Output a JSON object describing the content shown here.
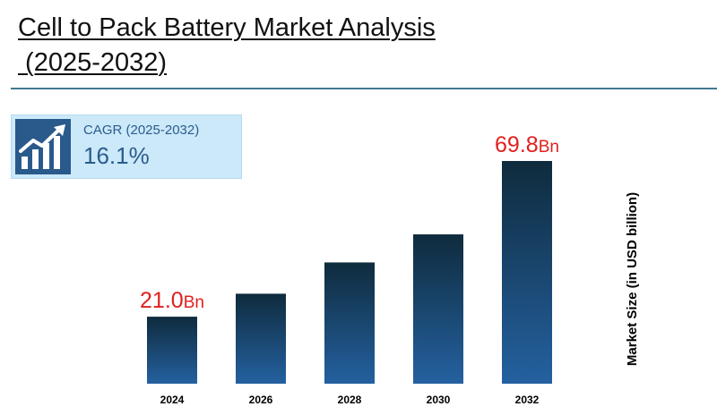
{
  "title_lines": [
    "Cell to Pack Battery Market Analysis",
    " (2025-2032)"
  ],
  "cagr": {
    "label": "CAGR (2025-2032)",
    "value": "16.1%",
    "icon": "growth-chart-icon"
  },
  "colors": {
    "bar_top": "#0f2b3d",
    "bar_bottom": "#2461a0",
    "accent_red": "#e0201f",
    "divider": "#3f7a8f"
  },
  "chart_data": {
    "type": "bar",
    "categories": [
      "2024",
      "2026",
      "2028",
      "2030",
      "2032"
    ],
    "values": [
      21.0,
      28.2,
      38.0,
      46.8,
      69.8
    ],
    "data_labels": [
      {
        "index": 0,
        "number": "21.0",
        "unit": "Bn"
      },
      {
        "index": 4,
        "number": "69.8",
        "unit": "Bn"
      }
    ],
    "title": "Cell to Pack Battery Market Analysis (2025-2032)",
    "xlabel": "",
    "ylabel": "Market Size (in USD billion)",
    "ylim": [
      0,
      69.8
    ],
    "grid": false,
    "legend": "none"
  }
}
